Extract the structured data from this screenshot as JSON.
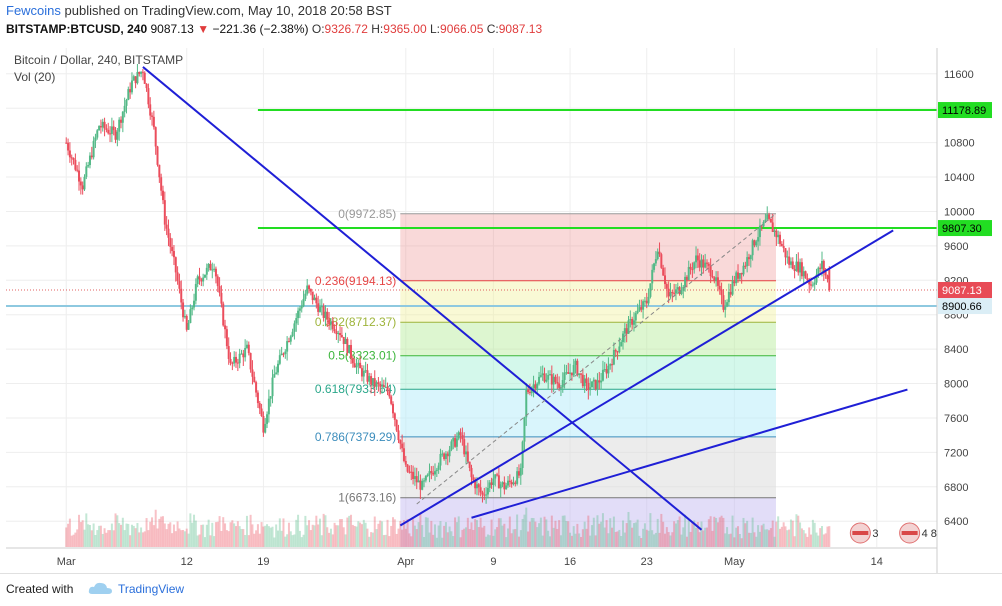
{
  "header": {
    "author": "Fewcoins",
    "published_text": "published on TradingView.com, May 10, 2018 20:58 BST",
    "symbol": "BITSTAMP:BTCUSD, 240",
    "last": "9087.13",
    "change_arrow": "▼",
    "change": "−221.36 (−2.38%)",
    "o_label": "O:",
    "o_value": "9326.72",
    "h_label": "H:",
    "h_value": "9365.00",
    "l_label": "L:",
    "l_value": "9066.05",
    "c_label": "C:",
    "c_value": "9087.13"
  },
  "legend": {
    "title": "Bitcoin / Dollar, 240, BITSTAMP",
    "vol": "Vol (20)"
  },
  "footer": {
    "created": "Created with",
    "brand": "TradingView"
  },
  "colors": {
    "up": "#53b987",
    "down": "#eb4d5c",
    "trendline": "#1f1fd6",
    "level": "#22dd22",
    "bg": "#ffffff",
    "grid": "#eeeeee"
  },
  "chart_data": {
    "type": "candlestick",
    "y_ticks": [
      11600,
      11200,
      10800,
      10400,
      10000,
      9600,
      9200,
      8800,
      8400,
      8000,
      7600,
      7200,
      6800,
      6400
    ],
    "ylim": [
      6100,
      11900
    ],
    "x_ticks": [
      {
        "label": "Mar",
        "day": 0
      },
      {
        "label": "12",
        "day": 11
      },
      {
        "label": "19",
        "day": 18
      },
      {
        "label": "Apr",
        "day": 31
      },
      {
        "label": "9",
        "day": 39
      },
      {
        "label": "16",
        "day": 46
      },
      {
        "label": "23",
        "day": 53
      },
      {
        "label": "May",
        "day": 61
      },
      {
        "label": "14",
        "day": 74
      }
    ],
    "xlim_day": [
      -5.5,
      79.5
    ],
    "price_waypoints": [
      [
        0.0,
        10800
      ],
      [
        1.5,
        10300
      ],
      [
        3.0,
        11000
      ],
      [
        4.5,
        10900
      ],
      [
        6.0,
        11500
      ],
      [
        7.0,
        11650
      ],
      [
        8.0,
        10950
      ],
      [
        9.0,
        9900
      ],
      [
        10.0,
        9300
      ],
      [
        11.0,
        8600
      ],
      [
        12.0,
        9200
      ],
      [
        13.5,
        9400
      ],
      [
        15.0,
        8200
      ],
      [
        16.5,
        8400
      ],
      [
        18.0,
        7500
      ],
      [
        19.0,
        8100
      ],
      [
        20.5,
        8600
      ],
      [
        22.0,
        9100
      ],
      [
        23.5,
        8800
      ],
      [
        25.0,
        8600
      ],
      [
        26.5,
        8200
      ],
      [
        28.0,
        8000
      ],
      [
        29.5,
        7900
      ],
      [
        31.0,
        7000
      ],
      [
        32.5,
        6800
      ],
      [
        34.0,
        7100
      ],
      [
        36.0,
        7400
      ],
      [
        37.0,
        6900
      ],
      [
        38.0,
        6700
      ],
      [
        39.0,
        6900
      ],
      [
        40.0,
        6800
      ],
      [
        41.5,
        6950
      ],
      [
        42.0,
        7900
      ],
      [
        43.5,
        8100
      ],
      [
        45.0,
        8000
      ],
      [
        46.5,
        8200
      ],
      [
        47.5,
        7950
      ],
      [
        48.5,
        8000
      ],
      [
        49.5,
        8200
      ],
      [
        51.0,
        8600
      ],
      [
        52.0,
        8800
      ],
      [
        53.0,
        8950
      ],
      [
        54.0,
        9600
      ],
      [
        55.0,
        9000
      ],
      [
        56.0,
        9100
      ],
      [
        57.5,
        9450
      ],
      [
        59.0,
        9300
      ],
      [
        60.0,
        8900
      ],
      [
        61.0,
        9200
      ],
      [
        62.0,
        9400
      ],
      [
        63.0,
        9700
      ],
      [
        64.0,
        9900
      ],
      [
        65.0,
        9700
      ],
      [
        66.0,
        9400
      ],
      [
        67.0,
        9350
      ],
      [
        68.0,
        9150
      ],
      [
        69.0,
        9380
      ],
      [
        69.8,
        9087
      ]
    ],
    "fibonacci": {
      "start_day": 30.5,
      "end_day": 64.8,
      "levels": [
        {
          "ratio": 0,
          "price": 9972.85,
          "label": "0(9972.85)",
          "color": "#999999",
          "fill": "rgba(234,130,130,0.30)"
        },
        {
          "ratio": 0.236,
          "price": 9194.13,
          "label": "0.236(9194.13)",
          "color": "#e64545",
          "fill": "rgba(240,240,150,0.40)"
        },
        {
          "ratio": 0.382,
          "price": 8712.37,
          "label": "0.382(8712.37)",
          "color": "#9eb43a",
          "fill": "rgba(180,235,150,0.45)"
        },
        {
          "ratio": 0.5,
          "price": 8323.01,
          "label": "0.5(8323.01)",
          "color": "#3bb53b",
          "fill": "rgba(160,240,210,0.45)"
        },
        {
          "ratio": 0.618,
          "price": 7933.64,
          "label": "0.618(7933.64)",
          "color": "#2aa78a",
          "fill": "rgba(180,235,250,0.50)"
        },
        {
          "ratio": 0.786,
          "price": 7379.29,
          "label": "0.786(7379.29)",
          "color": "#3c8dbc",
          "fill": "rgba(220,220,220,0.55)"
        },
        {
          "ratio": 1,
          "price": 6673.16,
          "label": "1(6673.16)",
          "color": "#777777",
          "fill": "rgba(190,180,240,0.45)"
        }
      ]
    },
    "horizontal_levels": [
      {
        "price": 11178.89,
        "label": "11178.89",
        "start_day": 17.5,
        "color": "#22dd22"
      },
      {
        "price": 9807.3,
        "label": "9807.30",
        "start_day": 17.5,
        "color": "#22dd22"
      }
    ],
    "current_price": {
      "price": 9087.13,
      "label": "9087.13",
      "countdown": "01:15"
    },
    "blue_level": {
      "price": 8900.66,
      "label": "8900.66"
    },
    "trendlines": [
      {
        "from": [
          7.0,
          11680
        ],
        "to": [
          58.0,
          6300
        ]
      },
      {
        "from": [
          30.5,
          6350
        ],
        "to": [
          75.5,
          9780
        ]
      },
      {
        "from": [
          37.0,
          6440
        ],
        "to": [
          76.8,
          7930
        ]
      },
      {
        "from": [
          32.0,
          6600
        ],
        "to": [
          64.8,
          9975
        ],
        "dashed": true
      }
    ],
    "event_badges": [
      {
        "day": 72.5,
        "count": "3"
      },
      {
        "day": 77.0,
        "count": "4 8"
      }
    ]
  }
}
